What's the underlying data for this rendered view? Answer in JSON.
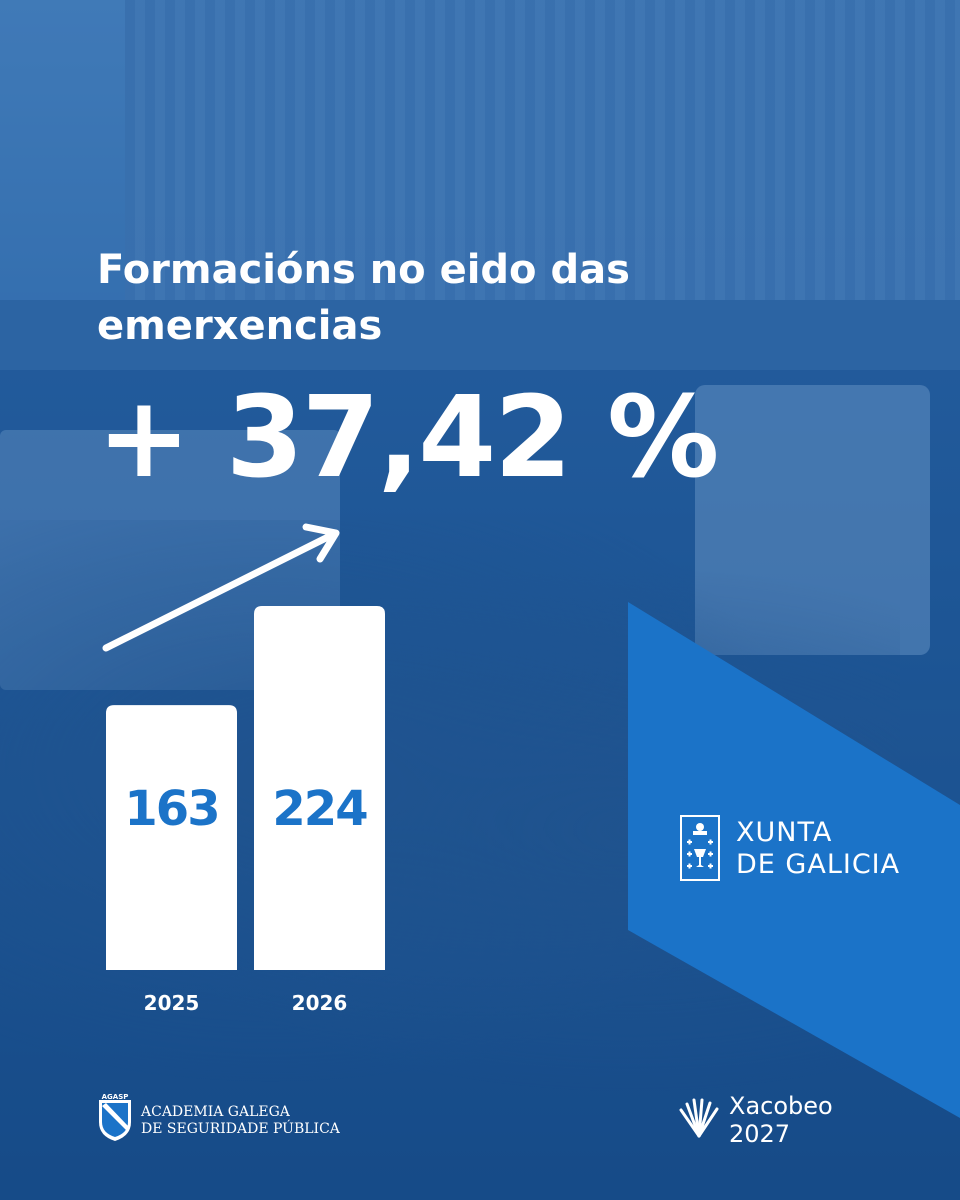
{
  "title_line1": "Formacións no eido das",
  "title_line2": "emerxencias",
  "highlight": "+ 37,42 %",
  "chart_data": {
    "type": "bar",
    "categories": [
      "2025",
      "2026"
    ],
    "values": [
      163,
      224
    ],
    "title": "Formacións no eido das emerxencias",
    "ylim": [
      0,
      240
    ],
    "grid": false,
    "bar_color": "#ffffff",
    "value_label_color": "#1b73c8",
    "trend_arrow": true
  },
  "colors": {
    "brand_blue": "#1b73c8",
    "overlay": "#0e52a0",
    "text": "#ffffff"
  },
  "logos": {
    "xunta_line1": "XUNTA",
    "xunta_line2": "DE GALICIA",
    "agasp_badge": "AGASP",
    "agasp_line1": "ACADEMIA GALEGA",
    "agasp_line2": "DE SEGURIDADE PÚBLICA",
    "xacobeo_line1": "Xacobeo",
    "xacobeo_line2": "2027"
  }
}
